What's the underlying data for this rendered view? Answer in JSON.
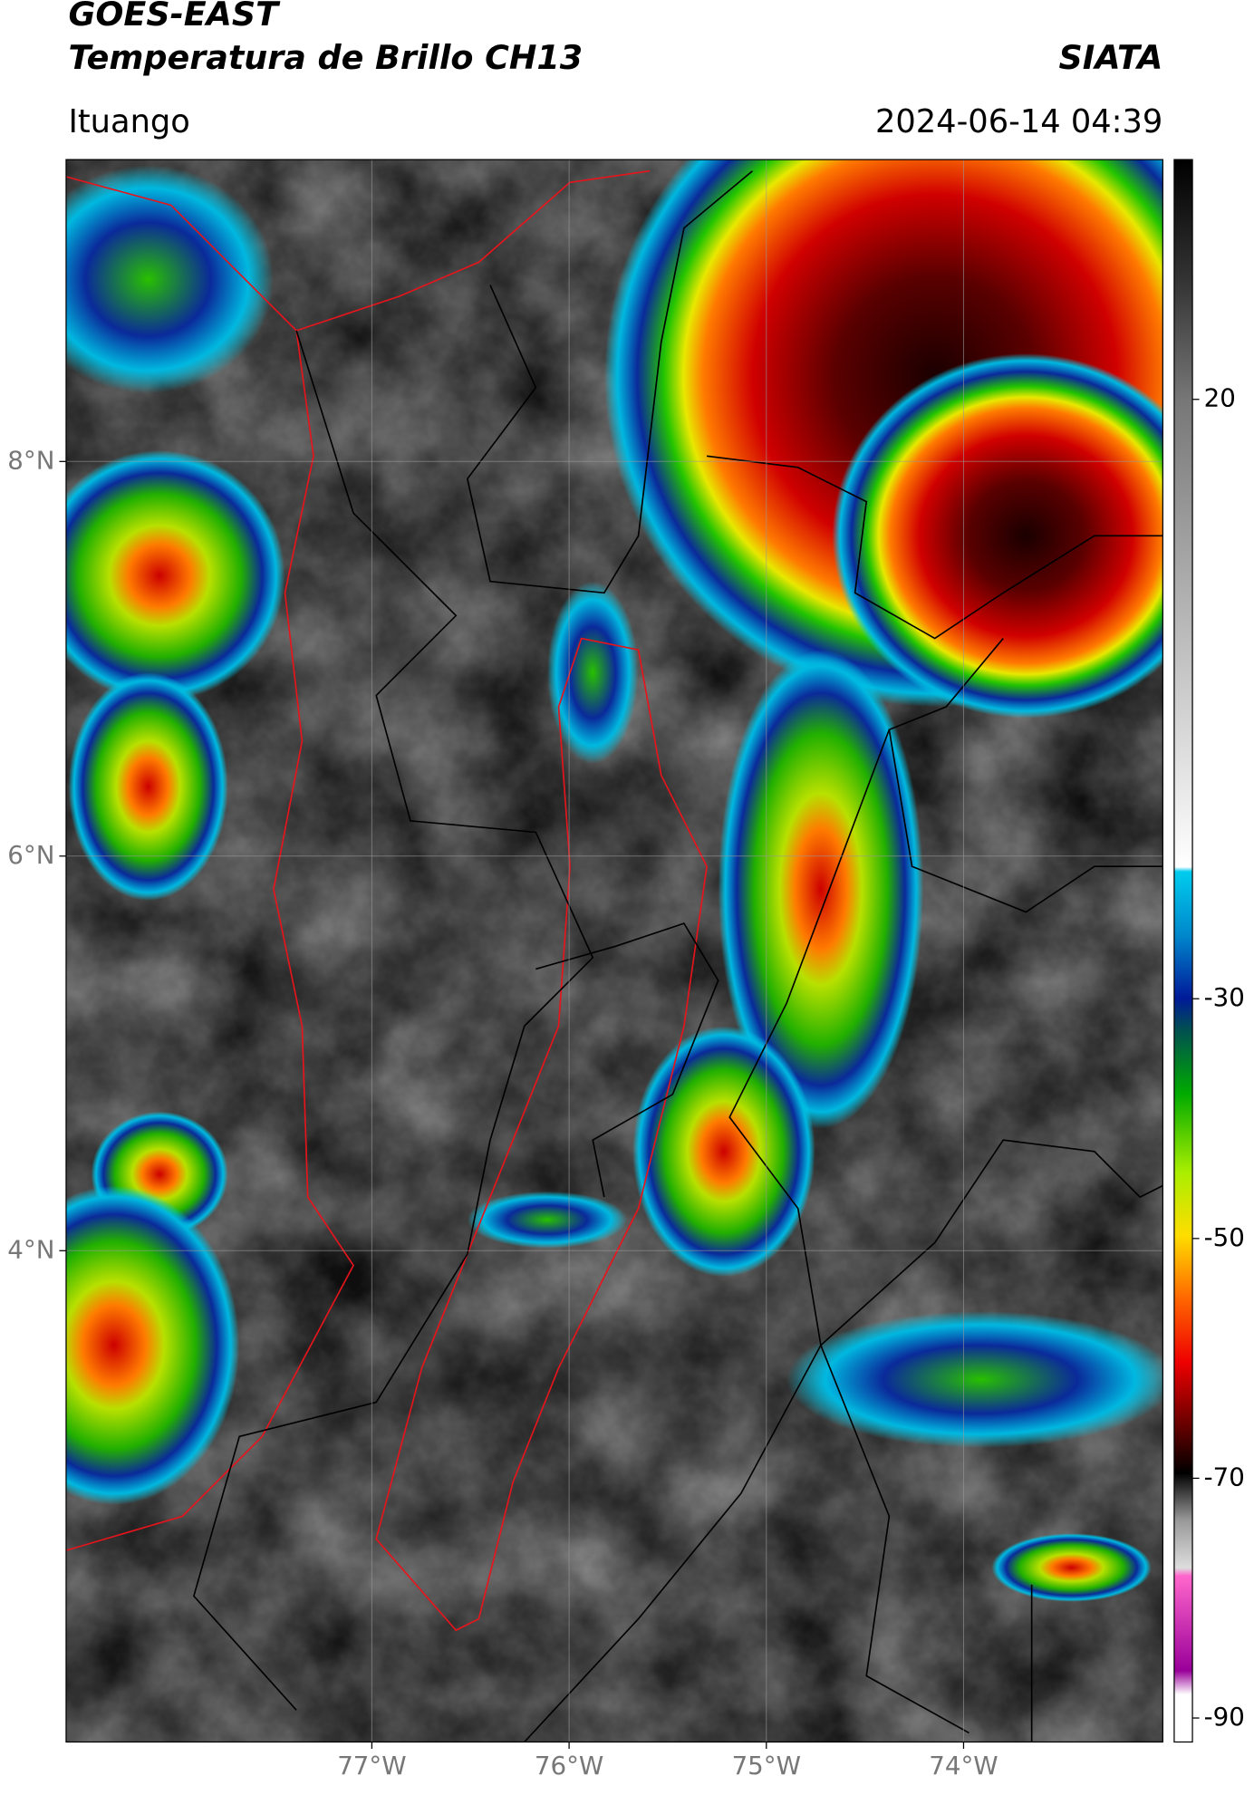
{
  "header": {
    "title": "GOES-EAST",
    "subtitle": "Temperatura de Brillo CH13",
    "source": "SIATA",
    "region": "Ituango",
    "datetime": "2024-06-14 04:39"
  },
  "map": {
    "xlim": [
      -78.55,
      -72.99
    ],
    "ylim": [
      1.51,
      9.53
    ],
    "xticks": [
      {
        "value": -77,
        "label": "77°W"
      },
      {
        "value": -76,
        "label": "76°W"
      },
      {
        "value": -75,
        "label": "75°W"
      },
      {
        "value": -74,
        "label": "74°W"
      }
    ],
    "yticks": [
      {
        "value": 8,
        "label": "8°N"
      },
      {
        "value": 6,
        "label": "6°N"
      },
      {
        "value": 4,
        "label": "4°N"
      }
    ],
    "grid": true
  },
  "colorbar": {
    "ylim": [
      -92,
      40
    ],
    "yticks": [
      20,
      -30,
      -50,
      -70,
      -90
    ]
  }
}
